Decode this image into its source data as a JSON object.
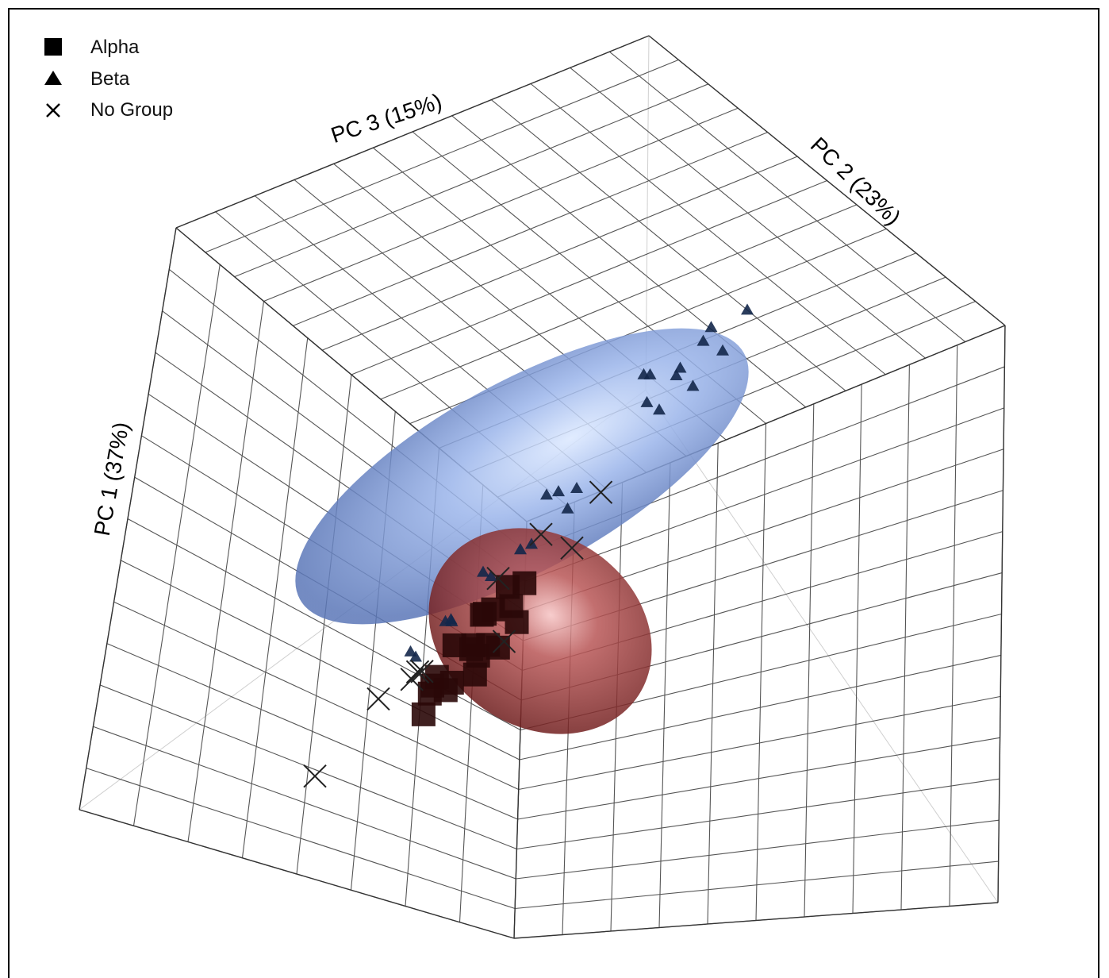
{
  "chart_data": {
    "type": "scatter",
    "projection": "3d",
    "title": "",
    "axes": {
      "pc1_label": "PC 1 (37%)",
      "pc2_label": "PC 2 (23%)",
      "pc3_label": "PC 3 (15%)"
    },
    "grid": true,
    "legend_position": "top-left",
    "legend": [
      {
        "name": "Alpha",
        "marker": "square"
      },
      {
        "name": "Beta",
        "marker": "triangle"
      },
      {
        "name": "No Group",
        "marker": "x"
      }
    ],
    "colors": {
      "alpha_ellipse": "#8a2a2a",
      "beta_ellipse": "#6f8fd0",
      "grid": "#555555",
      "marker": "#000000"
    },
    "series": [
      {
        "name": "Alpha",
        "marker": "square",
        "points": [
          [
            -0.05,
            -0.3,
            0.1
          ],
          [
            0.0,
            -0.35,
            0.0
          ],
          [
            0.05,
            -0.25,
            0.05
          ],
          [
            0.1,
            -0.4,
            -0.05
          ],
          [
            -0.1,
            -0.42,
            0.02
          ],
          [
            0.15,
            -0.3,
            0.08
          ],
          [
            0.0,
            -0.5,
            0.1
          ],
          [
            0.08,
            -0.55,
            -0.02
          ],
          [
            -0.12,
            -0.55,
            0.05
          ],
          [
            0.2,
            -0.45,
            0.0
          ],
          [
            0.12,
            -0.62,
            0.05
          ],
          [
            -0.05,
            -0.65,
            -0.05
          ],
          [
            0.25,
            -0.55,
            0.1
          ],
          [
            0.22,
            -0.65,
            -0.05
          ],
          [
            0.05,
            -0.7,
            0.02
          ],
          [
            -0.15,
            -0.6,
            0.12
          ],
          [
            0.18,
            -0.75,
            0.05
          ],
          [
            0.28,
            -0.7,
            0.0
          ],
          [
            -0.08,
            -0.75,
            0.08
          ],
          [
            0.1,
            -0.78,
            -0.08
          ]
        ]
      },
      {
        "name": "Beta",
        "marker": "triangle",
        "points": [
          [
            0.7,
            0.4,
            0.1
          ],
          [
            0.75,
            0.55,
            0.05
          ],
          [
            0.55,
            0.35,
            0.2
          ],
          [
            0.5,
            0.45,
            0.0
          ],
          [
            0.6,
            0.5,
            -0.05
          ],
          [
            0.45,
            0.3,
            0.1
          ],
          [
            0.4,
            0.5,
            0.15
          ],
          [
            0.35,
            0.4,
            0.05
          ],
          [
            0.3,
            0.55,
            -0.1
          ],
          [
            0.2,
            0.1,
            0.0
          ],
          [
            0.15,
            0.05,
            0.1
          ],
          [
            0.1,
            0.15,
            -0.05
          ],
          [
            0.05,
            -0.05,
            0.05
          ],
          [
            -0.05,
            0.0,
            0.1
          ],
          [
            -0.1,
            -0.1,
            0.0
          ],
          [
            -0.15,
            -0.05,
            -0.05
          ],
          [
            -0.25,
            -0.2,
            0.05
          ],
          [
            -0.3,
            -0.15,
            0.1
          ],
          [
            -0.35,
            -0.3,
            0.0
          ],
          [
            -0.2,
            -0.25,
            -0.1
          ],
          [
            -0.45,
            -0.2,
            0.05
          ],
          [
            -0.05,
            0.25,
            0.05
          ],
          [
            0.5,
            0.65,
            0.1
          ],
          [
            0.25,
            0.6,
            0.05
          ]
        ]
      },
      {
        "name": "No Group",
        "marker": "x",
        "points": [
          [
            -0.6,
            -0.3,
            0.2
          ],
          [
            -0.3,
            -0.4,
            0.05
          ],
          [
            -0.32,
            -0.42,
            0.06
          ],
          [
            -0.28,
            -0.41,
            0.07
          ],
          [
            0.05,
            0.0,
            0.1
          ],
          [
            -0.1,
            -0.1,
            0.1
          ],
          [
            0.2,
            -0.6,
            0.15
          ],
          [
            0.45,
            -0.1,
            -0.05
          ],
          [
            0.5,
            -0.4,
            -0.1
          ],
          [
            -0.7,
            -0.6,
            0.1
          ]
        ]
      }
    ]
  }
}
